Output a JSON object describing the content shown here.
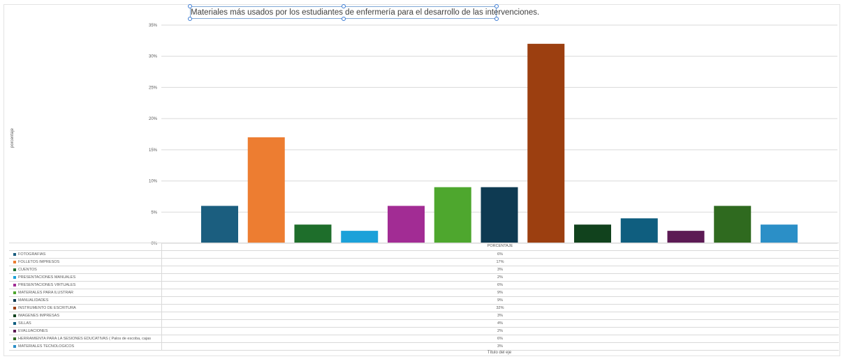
{
  "chart_data": {
    "type": "bar",
    "title": "Materiales  más usados por los estudiantes de enfermería para el  desarrollo de las intervenciones.",
    "ylabel": "porcentaje",
    "xlabel": "Título del eje",
    "ylim": [
      0,
      35
    ],
    "yticks": [
      "0%",
      "5%",
      "10%",
      "15%",
      "20%",
      "25%",
      "30%",
      "35%"
    ],
    "grid": true,
    "series_name": "PORCENTAJE",
    "categories": [
      "FOTOGRAFIAS",
      "FOLLETOS  IMPRESOS",
      "CUENTOS",
      "PRESENTACIONES  MANUALES",
      "PRESENTACIONES VIRTUALES",
      "MATERIALES PARA ILUSTRAR",
      "MANUALIDADES",
      "INSTRUMENTO DE ESCRITURA",
      "IMAGENES IMPRESAS",
      "SILLAS",
      "EVALUACIONES",
      "HERRAMIENTA PARA LA SESIONES  EDUCATIVAS  ( Palos de escoba, cajas",
      "MATERIALES TECNOLOGICOS"
    ],
    "values": [
      6,
      17,
      3,
      2,
      6,
      9,
      9,
      32,
      3,
      4,
      2,
      6,
      3
    ],
    "value_labels": [
      "6%",
      "17%",
      "3%",
      "2%",
      "6%",
      "9%",
      "9%",
      "32%",
      "3%",
      "4%",
      "2%",
      "6%",
      "3%"
    ],
    "colors": [
      "#1b5e7f",
      "#ed7d31",
      "#1e6e2b",
      "#1ba1d9",
      "#a22c94",
      "#4ea72e",
      "#0e3a52",
      "#9c3f10",
      "#11421d",
      "#0f5e7f",
      "#5c1a54",
      "#2f6a1f",
      "#2b8fc7"
    ]
  }
}
